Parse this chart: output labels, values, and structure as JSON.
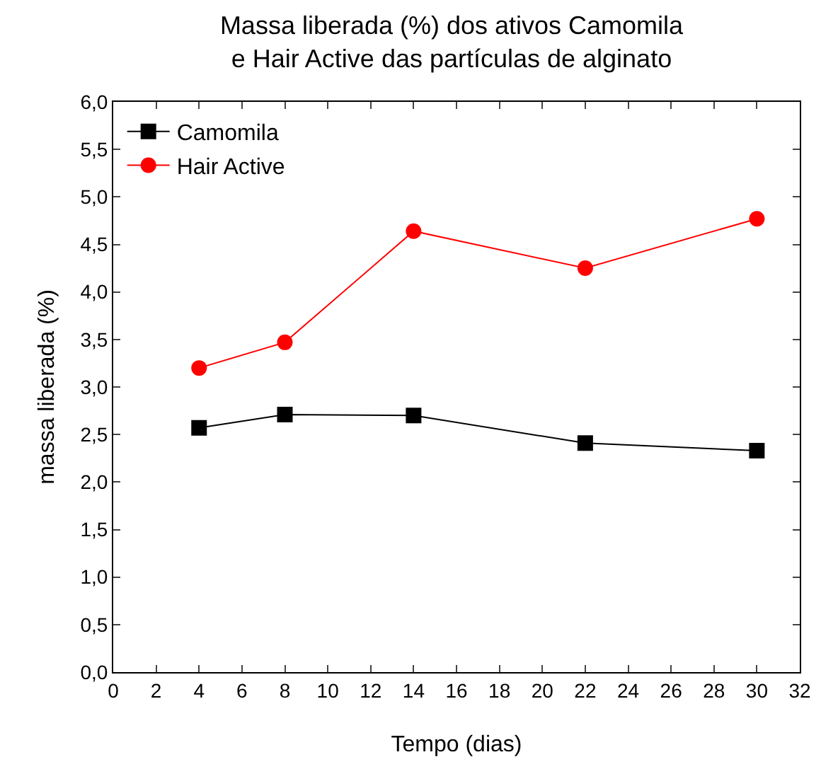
{
  "chart_data": {
    "type": "line",
    "title": "Massa liberada (%) dos ativos Camomila\ne Hair Active das partículas de alginato",
    "xlabel": "Tempo (dias)",
    "ylabel": "massa liberada (%)",
    "x": [
      4,
      8,
      14,
      22,
      30
    ],
    "series": [
      {
        "name": "Camomila",
        "color": "#000000",
        "marker": "square",
        "values": [
          2.57,
          2.71,
          2.7,
          2.41,
          2.33
        ]
      },
      {
        "name": "Hair Active",
        "color": "#ff0000",
        "marker": "circle",
        "values": [
          3.2,
          3.47,
          4.64,
          4.25,
          4.77
        ]
      }
    ],
    "xlim": [
      0,
      32
    ],
    "xticks": [
      0,
      2,
      4,
      6,
      8,
      10,
      12,
      14,
      16,
      18,
      20,
      22,
      24,
      26,
      28,
      30,
      32
    ],
    "ylim": [
      0,
      6
    ],
    "yticks": [
      {
        "value": 0,
        "label": "0,0"
      },
      {
        "value": 0.5,
        "label": "0,5"
      },
      {
        "value": 1,
        "label": "1,0"
      },
      {
        "value": 1.5,
        "label": "1,5"
      },
      {
        "value": 2,
        "label": "2,0"
      },
      {
        "value": 2.5,
        "label": "2,5"
      },
      {
        "value": 3,
        "label": "3,0"
      },
      {
        "value": 3.5,
        "label": "3,5"
      },
      {
        "value": 4,
        "label": "4,0"
      },
      {
        "value": 4.5,
        "label": "4,5"
      },
      {
        "value": 5,
        "label": "5,0"
      },
      {
        "value": 5.5,
        "label": "5,5"
      },
      {
        "value": 6,
        "label": "6,0"
      }
    ],
    "grid": false,
    "legend": "top left",
    "line_style": "solid"
  }
}
